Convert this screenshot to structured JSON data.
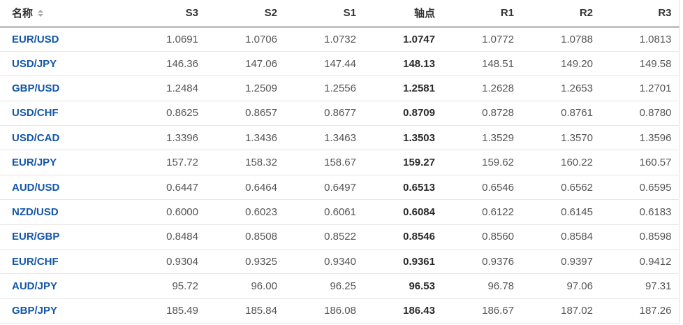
{
  "table": {
    "name_header": {
      "label": "名称",
      "sort_icon": "sort-arrows-icon"
    },
    "value_headers": [
      {
        "key": "s3",
        "label": "S3"
      },
      {
        "key": "s2",
        "label": "S2"
      },
      {
        "key": "s1",
        "label": "S1"
      },
      {
        "key": "pivot",
        "label": "轴点"
      },
      {
        "key": "r1",
        "label": "R1"
      },
      {
        "key": "r2",
        "label": "R2"
      },
      {
        "key": "r3",
        "label": "R3"
      }
    ],
    "pivot_col_index": 3,
    "rows": [
      {
        "pair": "EUR/USD",
        "values": [
          "1.0691",
          "1.0706",
          "1.0732",
          "1.0747",
          "1.0772",
          "1.0788",
          "1.0813"
        ]
      },
      {
        "pair": "USD/JPY",
        "values": [
          "146.36",
          "147.06",
          "147.44",
          "148.13",
          "148.51",
          "149.20",
          "149.58"
        ]
      },
      {
        "pair": "GBP/USD",
        "values": [
          "1.2484",
          "1.2509",
          "1.2556",
          "1.2581",
          "1.2628",
          "1.2653",
          "1.2701"
        ]
      },
      {
        "pair": "USD/CHF",
        "values": [
          "0.8625",
          "0.8657",
          "0.8677",
          "0.8709",
          "0.8728",
          "0.8761",
          "0.8780"
        ]
      },
      {
        "pair": "USD/CAD",
        "values": [
          "1.3396",
          "1.3436",
          "1.3463",
          "1.3503",
          "1.3529",
          "1.3570",
          "1.3596"
        ]
      },
      {
        "pair": "EUR/JPY",
        "values": [
          "157.72",
          "158.32",
          "158.67",
          "159.27",
          "159.62",
          "160.22",
          "160.57"
        ]
      },
      {
        "pair": "AUD/USD",
        "values": [
          "0.6447",
          "0.6464",
          "0.6497",
          "0.6513",
          "0.6546",
          "0.6562",
          "0.6595"
        ]
      },
      {
        "pair": "NZD/USD",
        "values": [
          "0.6000",
          "0.6023",
          "0.6061",
          "0.6084",
          "0.6122",
          "0.6145",
          "0.6183"
        ]
      },
      {
        "pair": "EUR/GBP",
        "values": [
          "0.8484",
          "0.8508",
          "0.8522",
          "0.8546",
          "0.8560",
          "0.8584",
          "0.8598"
        ]
      },
      {
        "pair": "EUR/CHF",
        "values": [
          "0.9304",
          "0.9325",
          "0.9340",
          "0.9361",
          "0.9376",
          "0.9397",
          "0.9412"
        ]
      },
      {
        "pair": "AUD/JPY",
        "values": [
          "95.72",
          "96.00",
          "96.25",
          "96.53",
          "96.78",
          "97.06",
          "97.31"
        ]
      },
      {
        "pair": "GBP/JPY",
        "values": [
          "185.49",
          "185.84",
          "186.08",
          "186.43",
          "186.67",
          "187.02",
          "187.26"
        ]
      }
    ]
  },
  "colors": {
    "pair_link_blue": "#1356a8",
    "value_gray": "#555555",
    "pivot_text_dark": "#2a2a2a",
    "header_text": "#333333",
    "header_border": "#c2c2c2",
    "row_border": "#e6e6e6",
    "sort_icon_gray": "#a9a9a9",
    "background": "#ffffff"
  }
}
